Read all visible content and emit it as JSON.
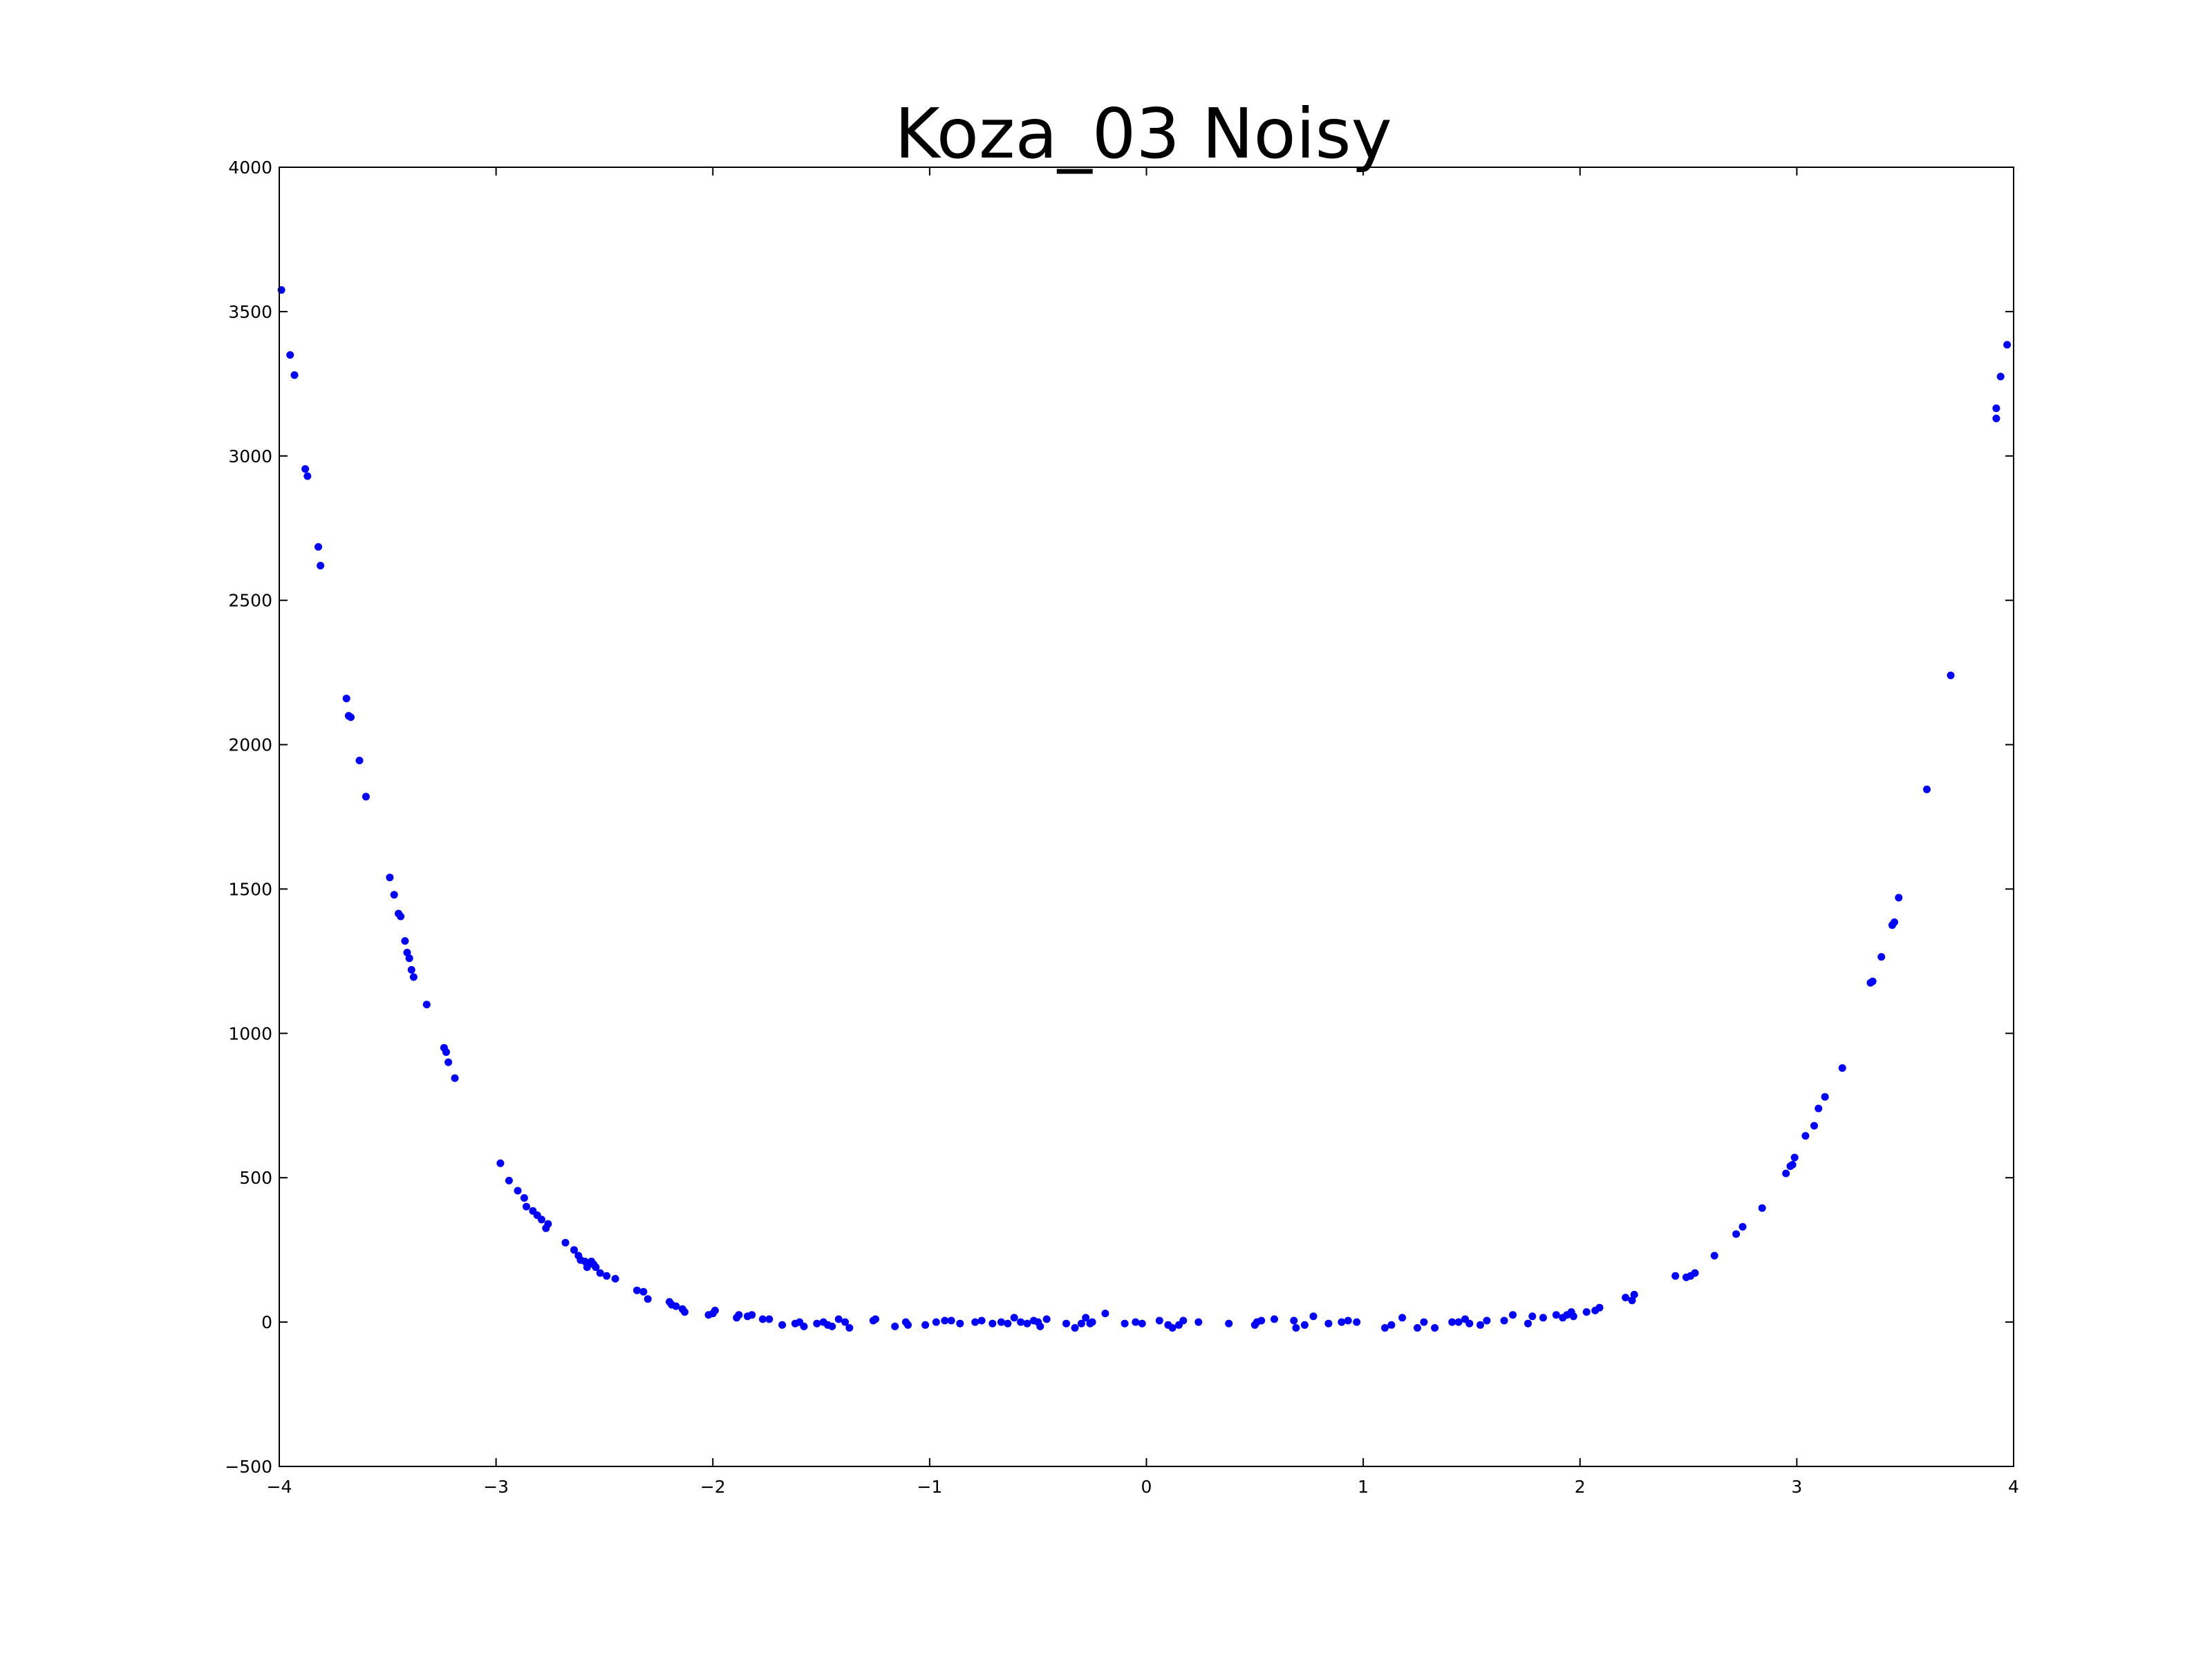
{
  "chart_data": {
    "type": "scatter",
    "title": "Koza_03 Noisy",
    "xlabel": "",
    "ylabel": "",
    "xlim": [
      -4,
      4
    ],
    "ylim": [
      -500,
      4000
    ],
    "x_ticks": [
      -4,
      -3,
      -2,
      -1,
      0,
      1,
      2,
      3,
      4
    ],
    "y_ticks": [
      -500,
      0,
      500,
      1000,
      1500,
      2000,
      2500,
      3000,
      3500,
      4000
    ],
    "x_tick_labels": [
      "−4",
      "−3",
      "−2",
      "−1",
      "0",
      "1",
      "2",
      "3",
      "4"
    ],
    "y_tick_labels": [
      "−500",
      "0",
      "500",
      "1000",
      "1500",
      "2000",
      "2500",
      "3000",
      "3500",
      "4000"
    ],
    "grid": false,
    "marker_color": "#0000ff",
    "points": [
      [
        -3.99,
        3575
      ],
      [
        -3.95,
        3350
      ],
      [
        -3.93,
        3280
      ],
      [
        -3.88,
        2955
      ],
      [
        -3.87,
        2930
      ],
      [
        -3.82,
        2685
      ],
      [
        -3.81,
        2620
      ],
      [
        -3.69,
        2160
      ],
      [
        -3.68,
        2100
      ],
      [
        -3.67,
        2095
      ],
      [
        -3.63,
        1945
      ],
      [
        -3.6,
        1820
      ],
      [
        -3.49,
        1540
      ],
      [
        -3.47,
        1480
      ],
      [
        -3.45,
        1415
      ],
      [
        -3.44,
        1405
      ],
      [
        -3.42,
        1320
      ],
      [
        -3.41,
        1280
      ],
      [
        -3.4,
        1260
      ],
      [
        -3.39,
        1220
      ],
      [
        -3.38,
        1195
      ],
      [
        -3.32,
        1100
      ],
      [
        -3.24,
        950
      ],
      [
        -3.23,
        935
      ],
      [
        -3.22,
        900
      ],
      [
        -3.19,
        845
      ],
      [
        -2.98,
        550
      ],
      [
        -2.94,
        490
      ],
      [
        -2.9,
        455
      ],
      [
        -2.87,
        430
      ],
      [
        -2.86,
        400
      ],
      [
        -2.83,
        385
      ],
      [
        -2.81,
        370
      ],
      [
        -2.79,
        355
      ],
      [
        -2.77,
        325
      ],
      [
        -2.76,
        340
      ],
      [
        -2.68,
        275
      ],
      [
        -2.64,
        250
      ],
      [
        -2.62,
        230
      ],
      [
        -2.61,
        215
      ],
      [
        -2.59,
        210
      ],
      [
        -2.58,
        190
      ],
      [
        -2.56,
        210
      ],
      [
        -2.55,
        200
      ],
      [
        -2.54,
        190
      ],
      [
        -2.52,
        170
      ],
      [
        -2.49,
        160
      ],
      [
        -2.45,
        150
      ],
      [
        -2.35,
        110
      ],
      [
        -2.32,
        105
      ],
      [
        -2.3,
        80
      ],
      [
        -2.2,
        70
      ],
      [
        -2.19,
        60
      ],
      [
        -2.17,
        55
      ],
      [
        -2.14,
        45
      ],
      [
        -2.13,
        35
      ],
      [
        -2.02,
        25
      ],
      [
        -2.0,
        30
      ],
      [
        -1.99,
        40
      ],
      [
        -1.89,
        15
      ],
      [
        -1.88,
        25
      ],
      [
        -1.84,
        20
      ],
      [
        -1.82,
        25
      ],
      [
        -1.77,
        10
      ],
      [
        -1.74,
        10
      ],
      [
        -1.68,
        -10
      ],
      [
        -1.62,
        -5
      ],
      [
        -1.6,
        0
      ],
      [
        -1.58,
        -15
      ],
      [
        -1.52,
        -5
      ],
      [
        -1.49,
        0
      ],
      [
        -1.47,
        -10
      ],
      [
        -1.45,
        -15
      ],
      [
        -1.42,
        10
      ],
      [
        -1.39,
        0
      ],
      [
        -1.37,
        -20
      ],
      [
        -1.26,
        5
      ],
      [
        -1.25,
        10
      ],
      [
        -1.16,
        -15
      ],
      [
        -1.11,
        0
      ],
      [
        -1.1,
        -10
      ],
      [
        -1.02,
        -10
      ],
      [
        -0.97,
        0
      ],
      [
        -0.93,
        5
      ],
      [
        -0.9,
        5
      ],
      [
        -0.86,
        -5
      ],
      [
        -0.79,
        0
      ],
      [
        -0.76,
        5
      ],
      [
        -0.71,
        -5
      ],
      [
        -0.67,
        0
      ],
      [
        -0.64,
        -5
      ],
      [
        -0.61,
        15
      ],
      [
        -0.58,
        0
      ],
      [
        -0.55,
        -5
      ],
      [
        -0.52,
        5
      ],
      [
        -0.5,
        0
      ],
      [
        -0.49,
        -15
      ],
      [
        -0.46,
        10
      ],
      [
        -0.37,
        -5
      ],
      [
        -0.33,
        -20
      ],
      [
        -0.3,
        -5
      ],
      [
        -0.28,
        15
      ],
      [
        -0.26,
        -5
      ],
      [
        -0.25,
        0
      ],
      [
        -0.19,
        30
      ],
      [
        -0.1,
        -5
      ],
      [
        -0.05,
        0
      ],
      [
        -0.02,
        -5
      ],
      [
        0.06,
        5
      ],
      [
        0.1,
        -10
      ],
      [
        0.12,
        -20
      ],
      [
        0.15,
        -10
      ],
      [
        0.17,
        5
      ],
      [
        0.24,
        0
      ],
      [
        0.38,
        -5
      ],
      [
        0.5,
        -10
      ],
      [
        0.51,
        0
      ],
      [
        0.53,
        5
      ],
      [
        0.59,
        10
      ],
      [
        0.68,
        5
      ],
      [
        0.69,
        -20
      ],
      [
        0.73,
        -10
      ],
      [
        0.77,
        20
      ],
      [
        0.84,
        -5
      ],
      [
        0.9,
        0
      ],
      [
        0.93,
        5
      ],
      [
        0.97,
        0
      ],
      [
        1.1,
        -20
      ],
      [
        1.13,
        -10
      ],
      [
        1.18,
        15
      ],
      [
        1.25,
        -20
      ],
      [
        1.28,
        0
      ],
      [
        1.33,
        -20
      ],
      [
        1.41,
        0
      ],
      [
        1.44,
        0
      ],
      [
        1.47,
        10
      ],
      [
        1.49,
        -5
      ],
      [
        1.54,
        -10
      ],
      [
        1.57,
        5
      ],
      [
        1.65,
        5
      ],
      [
        1.69,
        25
      ],
      [
        1.76,
        -5
      ],
      [
        1.78,
        20
      ],
      [
        1.83,
        15
      ],
      [
        1.89,
        25
      ],
      [
        1.92,
        15
      ],
      [
        1.94,
        25
      ],
      [
        1.96,
        35
      ],
      [
        1.97,
        20
      ],
      [
        2.03,
        35
      ],
      [
        2.07,
        40
      ],
      [
        2.09,
        50
      ],
      [
        2.21,
        85
      ],
      [
        2.24,
        75
      ],
      [
        2.25,
        95
      ],
      [
        2.44,
        160
      ],
      [
        2.49,
        155
      ],
      [
        2.51,
        160
      ],
      [
        2.53,
        170
      ],
      [
        2.62,
        230
      ],
      [
        2.72,
        305
      ],
      [
        2.75,
        330
      ],
      [
        2.84,
        395
      ],
      [
        2.95,
        515
      ],
      [
        2.97,
        540
      ],
      [
        2.98,
        545
      ],
      [
        2.99,
        570
      ],
      [
        3.04,
        645
      ],
      [
        3.08,
        680
      ],
      [
        3.1,
        740
      ],
      [
        3.13,
        780
      ],
      [
        3.21,
        880
      ],
      [
        3.34,
        1175
      ],
      [
        3.35,
        1180
      ],
      [
        3.39,
        1265
      ],
      [
        3.44,
        1375
      ],
      [
        3.45,
        1385
      ],
      [
        3.47,
        1470
      ],
      [
        3.6,
        1845
      ],
      [
        3.71,
        2240
      ],
      [
        3.92,
        3130
      ],
      [
        3.92,
        3165
      ],
      [
        3.94,
        3275
      ],
      [
        3.97,
        3385
      ]
    ]
  }
}
